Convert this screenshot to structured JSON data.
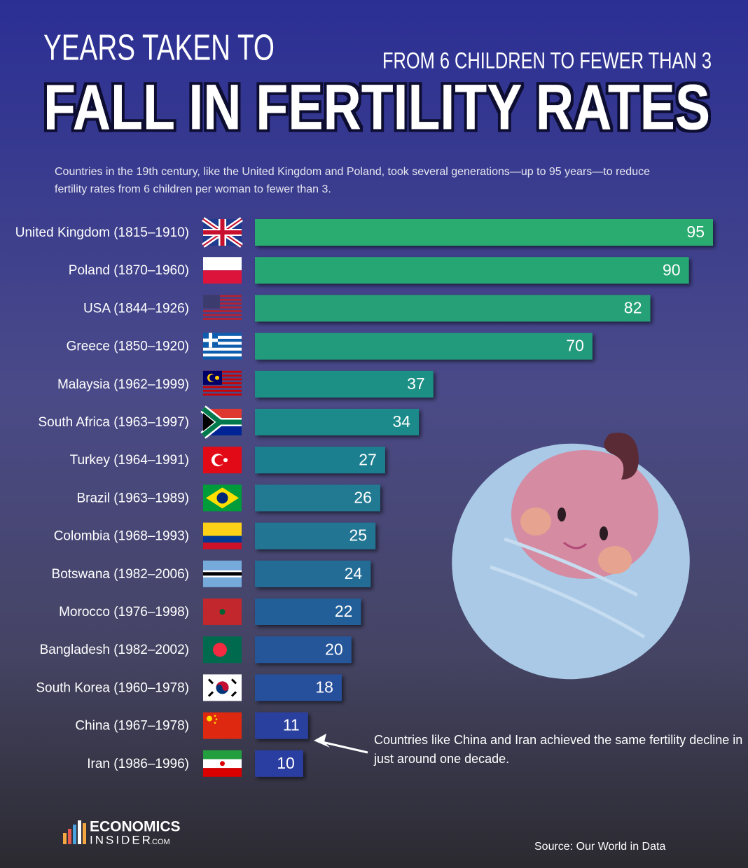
{
  "chart_data": {
    "type": "bar",
    "title_top": "YEARS TAKEN TO",
    "subtitle": "FROM 6 CHILDREN TO FEWER THAN 3",
    "title": "FALL IN FERTILITY RATES",
    "description": [
      "Countries in the 19th century, like the United Kingdom and Poland, took several generations—up to 95 years—to reduce",
      "fertility rates from 6 children per woman to fewer than 3."
    ],
    "categories": [
      "United Kingdom (1815–1910)",
      "Poland (1870–1960)",
      "USA (1844–1926)",
      "Greece (1850–1920)",
      "Malaysia (1962–1999)",
      "South Africa (1963–1997)",
      "Turkey (1964–1991)",
      "Brazil (1963–1989)",
      "Colombia (1968–1993)",
      "Botswana (1982–2006)",
      "Morocco (1976–1998)",
      "Bangladesh (1982–2002)",
      "South Korea (1960–1978)",
      "China (1967–1978)",
      "Iran (1986–1996)"
    ],
    "values": [
      95,
      90,
      82,
      70,
      37,
      34,
      27,
      26,
      25,
      24,
      22,
      20,
      18,
      11,
      10
    ],
    "colors": [
      "#2aab70",
      "#27a673",
      "#25a177",
      "#239a7b",
      "#1f9085",
      "#1e8a8a",
      "#1f7f8f",
      "#207a92",
      "#217493",
      "#236c96",
      "#245f98",
      "#25579a",
      "#27509c",
      "#2b419e",
      "#2c3ca0"
    ],
    "annotation": [
      "Countries like China and Iran achieved the same fertility decline in",
      "just around one decade."
    ],
    "source": "Source: Our World in Data",
    "logo": [
      "ECONOMICS",
      "INSIDER",
      ".COM"
    ]
  }
}
